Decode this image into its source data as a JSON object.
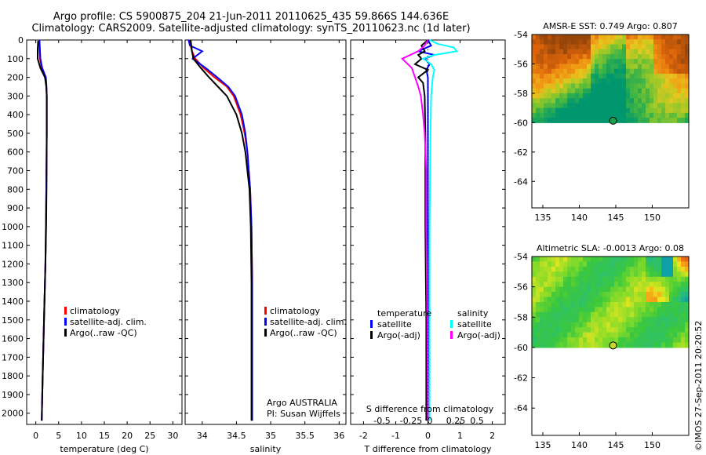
{
  "header": {
    "line1": "Argo profile: CS 5900875_204 21-Jun-2011 20110625_435 59.866S 144.636E",
    "line2": "Climatology: CARS2009. Satellite-adjusted climatology: synTS_20110623.nc (1d later)"
  },
  "footer_stamp": "©IMOS 27-Sep-2011 20:20:52",
  "colors": {
    "climatology": "#ff0000",
    "satellite": "#0000ff",
    "argo": "#000000",
    "sal_satellite": "#00ffff",
    "sal_argo": "#ff00ff"
  },
  "chart_data": [
    {
      "type": "line",
      "xlabel": "temperature (deg C)",
      "ylabel": "",
      "xlim": [
        -2,
        32
      ],
      "ylim": [
        2060,
        0
      ],
      "xticks": [
        "0",
        "5",
        "10",
        "15",
        "20",
        "25",
        "30"
      ],
      "yticks": [
        "0",
        "100",
        "200",
        "300",
        "400",
        "500",
        "600",
        "700",
        "800",
        "900",
        "1000",
        "1100",
        "1200",
        "1300",
        "1400",
        "1500",
        "1600",
        "1700",
        "1800",
        "1900",
        "2000"
      ],
      "legend": [
        "climatology",
        "satellite-adj. clim.",
        "Argo(..raw -QC)"
      ],
      "series": [
        {
          "name": "climatology",
          "y": [
            0,
            50,
            100,
            150,
            200,
            250,
            300,
            500,
            800,
            1000,
            1200,
            1500,
            1800,
            2040
          ],
          "x": [
            0.7,
            0.8,
            0.9,
            1.3,
            2.1,
            2.3,
            2.4,
            2.4,
            2.3,
            2.2,
            2.1,
            1.8,
            1.5,
            1.3
          ]
        },
        {
          "name": "satellite-adj. clim.",
          "y": [
            0,
            50,
            100,
            150,
            200,
            250,
            300,
            500,
            800,
            1000,
            1200,
            1500,
            1800,
            2040
          ],
          "x": [
            0.8,
            0.9,
            1.0,
            1.4,
            2.2,
            2.35,
            2.4,
            2.4,
            2.3,
            2.2,
            2.1,
            1.8,
            1.5,
            1.3
          ]
        },
        {
          "name": "Argo(..raw -QC)",
          "y": [
            5,
            50,
            100,
            150,
            200,
            250,
            300,
            500,
            800,
            1000,
            1200,
            1500,
            1800,
            2040
          ],
          "x": [
            0.5,
            0.4,
            0.4,
            1.0,
            2.0,
            2.3,
            2.4,
            2.4,
            2.35,
            2.25,
            2.1,
            1.8,
            1.5,
            1.3
          ]
        }
      ]
    },
    {
      "type": "line",
      "xlabel": "salinity",
      "xlim": [
        33.75,
        36.1
      ],
      "ylim": [
        2060,
        0
      ],
      "xticks": [
        "34",
        "34.5",
        "35",
        "35.5",
        "36"
      ],
      "legend": [
        "climatology",
        "satellite-adj. clim.",
        "Argo(..raw -QC)"
      ],
      "annotation": [
        "Argo AUSTRALIA",
        "PI: Susan Wijffels"
      ],
      "series": [
        {
          "name": "climatology",
          "y": [
            0,
            30,
            60,
            100,
            150,
            200,
            250,
            300,
            400,
            500,
            600,
            700,
            800,
            1000,
            1300,
            1600,
            2040
          ],
          "x": [
            33.82,
            33.83,
            33.85,
            33.9,
            34.02,
            34.18,
            34.36,
            34.46,
            34.56,
            34.62,
            34.66,
            34.68,
            34.7,
            34.72,
            34.73,
            34.73,
            34.73
          ]
        },
        {
          "name": "satellite-adj. clim.",
          "y": [
            0,
            30,
            60,
            100,
            150,
            200,
            250,
            300,
            400,
            500,
            600,
            700,
            800,
            1000,
            1300,
            1600,
            2040
          ],
          "x": [
            33.8,
            33.82,
            34.0,
            33.86,
            34.05,
            34.22,
            34.38,
            34.48,
            34.58,
            34.63,
            34.66,
            34.68,
            34.7,
            34.72,
            34.73,
            34.73,
            34.73
          ]
        },
        {
          "name": "Argo(..raw -QC)",
          "y": [
            0,
            30,
            60,
            100,
            150,
            200,
            250,
            300,
            400,
            500,
            600,
            700,
            800,
            1000,
            1300,
            1600,
            2040
          ],
          "x": [
            33.83,
            33.84,
            33.85,
            33.87,
            33.98,
            34.1,
            34.23,
            34.36,
            34.5,
            34.58,
            34.63,
            34.66,
            34.69,
            34.71,
            34.72,
            34.72,
            34.72
          ]
        }
      ]
    },
    {
      "type": "line",
      "xlabel": "T difference from climatology",
      "x2label": "S difference from climatology",
      "xlim": [
        -2.4,
        2.4
      ],
      "ylim": [
        2060,
        0
      ],
      "xticks": [
        "-2",
        "-1",
        "0",
        "1",
        "2"
      ],
      "x2ticks": [
        "-0.5",
        "-0.25",
        "0",
        "0.25",
        "0.5"
      ],
      "legend": [
        "temperature",
        "satellite",
        "Argo(-adj)",
        "salinity",
        "satellite",
        "Argo(-adj)"
      ],
      "series": [
        {
          "name": "satellite",
          "y": [
            0,
            30,
            60,
            80,
            100,
            130,
            160,
            200,
            300,
            500,
            1000,
            2040
          ],
          "x": [
            0,
            0.1,
            -0.3,
            0.2,
            -0.1,
            0.05,
            -0.05,
            0,
            0,
            0,
            0,
            0
          ]
        },
        {
          "name": "Argo(-adj)",
          "y": [
            0,
            30,
            60,
            80,
            100,
            130,
            160,
            200,
            230,
            300,
            500,
            1000,
            1500,
            2040
          ],
          "x": [
            0,
            -0.2,
            -0.1,
            -0.3,
            -0.2,
            -0.4,
            0,
            -0.3,
            -0.15,
            -0.1,
            -0.08,
            -0.08,
            -0.05,
            -0.05
          ]
        },
        {
          "name": "satellite",
          "y": [
            0,
            20,
            40,
            60,
            80,
            100,
            130,
            160,
            200,
            300,
            500,
            1000,
            2040
          ],
          "x": [
            0.05,
            0.3,
            0.8,
            0.9,
            0.2,
            -0.15,
            0.1,
            0.2,
            0.15,
            0.1,
            0.08,
            0.05,
            0.05
          ]
        },
        {
          "name": "Argo(-adj)",
          "y": [
            0,
            30,
            60,
            100,
            150,
            200,
            250,
            300,
            400,
            500,
            700,
            1000,
            1500,
            2040
          ],
          "x": [
            0,
            -0.1,
            -0.3,
            -0.8,
            -0.5,
            -0.4,
            -0.3,
            -0.22,
            -0.15,
            -0.1,
            -0.05,
            -0.05,
            -0.02,
            0
          ]
        }
      ]
    },
    {
      "type": "heatmap",
      "title": "AMSR-E SST: 0.749 Argo: 0.807",
      "xticks": [
        "135",
        "140",
        "145",
        "150"
      ],
      "yticks": [
        "-54",
        "-56",
        "-58",
        "-60",
        "-62",
        "-64"
      ],
      "xlim": [
        133.5,
        155
      ],
      "ylim": [
        -65.8,
        -54
      ],
      "data_lat_range": [
        -60,
        -54
      ],
      "marker": {
        "lon": 144.636,
        "lat": -59.866
      }
    },
    {
      "type": "heatmap",
      "title": "Altimetric SLA: -0.0013 Argo: 0.08",
      "xticks": [
        "135",
        "140",
        "145",
        "150"
      ],
      "yticks": [
        "-54",
        "-56",
        "-58",
        "-60",
        "-62",
        "-64"
      ],
      "xlim": [
        133.5,
        155
      ],
      "ylim": [
        -65.8,
        -54
      ],
      "data_lat_range": [
        -60,
        -54
      ],
      "marker": {
        "lon": 144.636,
        "lat": -59.866
      }
    }
  ]
}
